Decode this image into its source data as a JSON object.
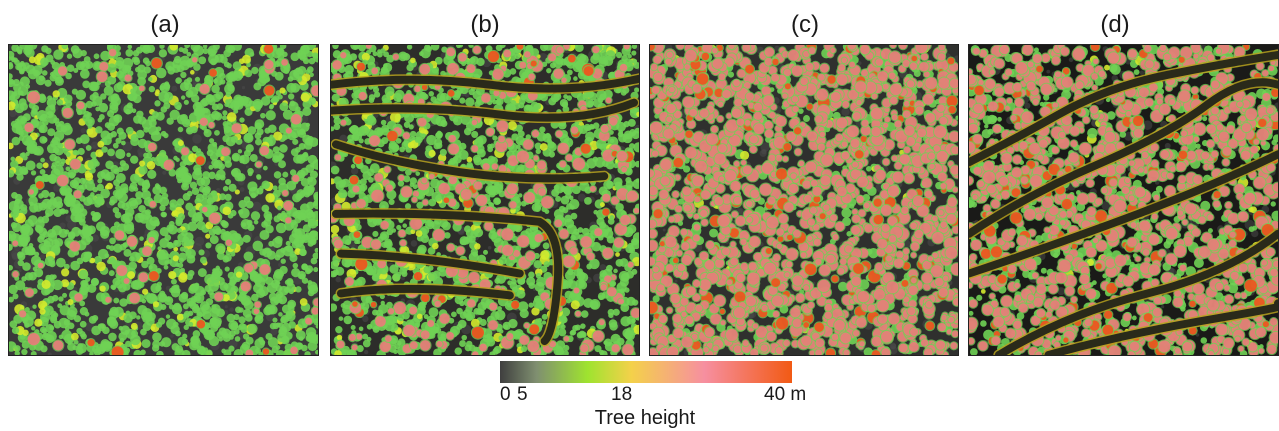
{
  "panels": [
    {
      "label": "(a)",
      "seed": 11,
      "base": "#3a3a3a",
      "densities": [
        0.62,
        0.03
      ],
      "roads": false
    },
    {
      "label": "(b)",
      "seed": 23,
      "base": "#2d2d2a",
      "densities": [
        0.55,
        0.12
      ],
      "roads": true
    },
    {
      "label": "(c)",
      "seed": 37,
      "base": "#2f302e",
      "densities": [
        0.1,
        0.62
      ],
      "roads": false
    },
    {
      "label": "(d)",
      "seed": 53,
      "base": "#1a1a18",
      "densities": [
        0.18,
        0.48
      ],
      "roads": true
    }
  ],
  "colors": {
    "low": "#4a4a4a",
    "green": "#6fd154",
    "yellow": "#d4ea2c",
    "pink": "#e87d79",
    "red": "#f0521e",
    "road_dark": "#2a2a1a",
    "road_edge": "#b7a21d"
  },
  "legend": {
    "title": "Tree height",
    "ticks": [
      {
        "value": 0,
        "label": "0"
      },
      {
        "value": 5,
        "label": "5"
      },
      {
        "value": 18,
        "label": "18"
      },
      {
        "value": 40,
        "label": "40 m"
      }
    ],
    "min": 0,
    "max": 40,
    "stops": [
      {
        "value": 0,
        "color": "#3f3f3f"
      },
      {
        "value": 5,
        "color": "#7f8f70"
      },
      {
        "value": 12,
        "color": "#9fe32f"
      },
      {
        "value": 18,
        "color": "#f4d14a"
      },
      {
        "value": 28,
        "color": "#f68fa0"
      },
      {
        "value": 40,
        "color": "#f25a14"
      }
    ]
  }
}
